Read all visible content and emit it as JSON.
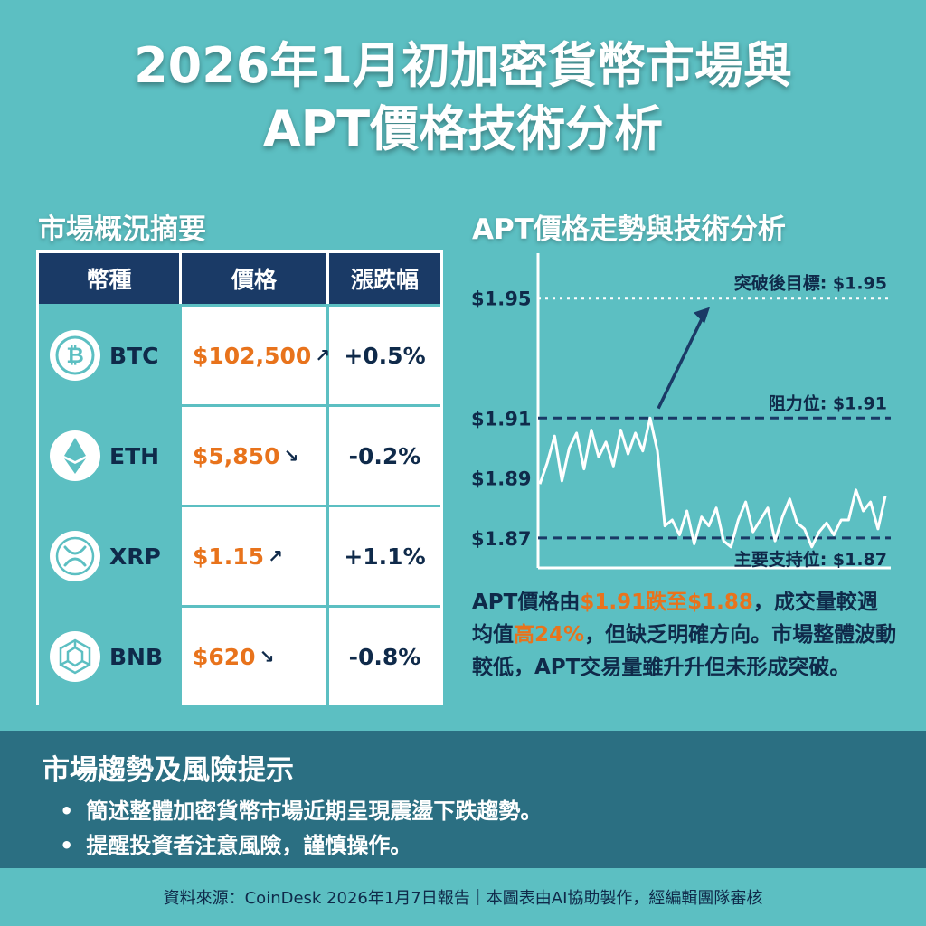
{
  "title": {
    "line1": "2026年1月初加密貨幣市場與",
    "line2": "APT價格技術分析"
  },
  "market_summary": {
    "heading": "市場概況摘要",
    "columns": [
      "幣種",
      "價格",
      "漲跌幅"
    ],
    "rows": [
      {
        "symbol": "BTC",
        "icon": "bitcoin-icon",
        "price": "$102,500",
        "arrow": "↗",
        "change": "+0.5%"
      },
      {
        "symbol": "ETH",
        "icon": "ethereum-icon",
        "price": "$5,850",
        "arrow": "↘",
        "change": "-0.2%"
      },
      {
        "symbol": "XRP",
        "icon": "xrp-icon",
        "price": "$1.15",
        "arrow": "↗",
        "change": "+1.1%"
      },
      {
        "symbol": "BNB",
        "icon": "bnb-icon",
        "price": "$620",
        "arrow": "↘",
        "change": "-0.8%"
      }
    ]
  },
  "chart_data": {
    "type": "line",
    "title": "APT價格走勢與技術分析",
    "xlabel": "",
    "ylabel": "",
    "ylim": [
      1.86,
      1.965
    ],
    "yticks": [
      "$1.95",
      "$1.91",
      "$1.89",
      "$1.87"
    ],
    "ytick_values": [
      1.95,
      1.91,
      1.89,
      1.87
    ],
    "series": [
      {
        "values": [
          1.888,
          1.895,
          1.904,
          1.889,
          1.9,
          1.905,
          1.893,
          1.906,
          1.897,
          1.902,
          1.894,
          1.906,
          1.898,
          1.905,
          1.899,
          1.91,
          1.899,
          1.874,
          1.876,
          1.871,
          1.879,
          1.868,
          1.877,
          1.874,
          1.88,
          1.869,
          1.867,
          1.876,
          1.882,
          1.872,
          1.876,
          1.88,
          1.869,
          1.877,
          1.883,
          1.875,
          1.873,
          1.867,
          1.872,
          1.875,
          1.871,
          1.876,
          1.876,
          1.886,
          1.879,
          1.882,
          1.873,
          1.884
        ]
      }
    ],
    "reference_lines": [
      {
        "value": 1.95,
        "label": "突破後目標: $1.95",
        "style": "dotted",
        "color": "#ffffff"
      },
      {
        "value": 1.91,
        "label": "阻力位: $1.91",
        "style": "dashed",
        "color": "#1a3a66"
      },
      {
        "value": 1.87,
        "label": "主要支持位: $1.87",
        "style": "dashed",
        "color": "#1a3a66"
      }
    ],
    "annotation": "breakout-arrow",
    "grid": false
  },
  "analysis": {
    "p1": "APT價格由",
    "h1": "$1.91跌至$1.88",
    "p2": "，成交量較週均值",
    "h2": "高24%",
    "p3": "，但缺乏明確方向。市場整體波動較低，APT交易量雖升升但未形成突破。"
  },
  "risk": {
    "heading": "市場趨勢及風險提示",
    "items": [
      "簡述整體加密貨幣市場近期呈現震盪下跌趨勢。",
      "提醒投資者注意風險，謹慎操作。"
    ]
  },
  "footer": {
    "text": "資料來源：CoinDesk 2026年1月7日報告｜本圖表由AI協助製作，經編輯團隊審核"
  },
  "colors": {
    "background": "#5cbfc2",
    "navy": "#1a3a66",
    "accent": "#e8731c",
    "risk_band": "#2b6f82"
  }
}
